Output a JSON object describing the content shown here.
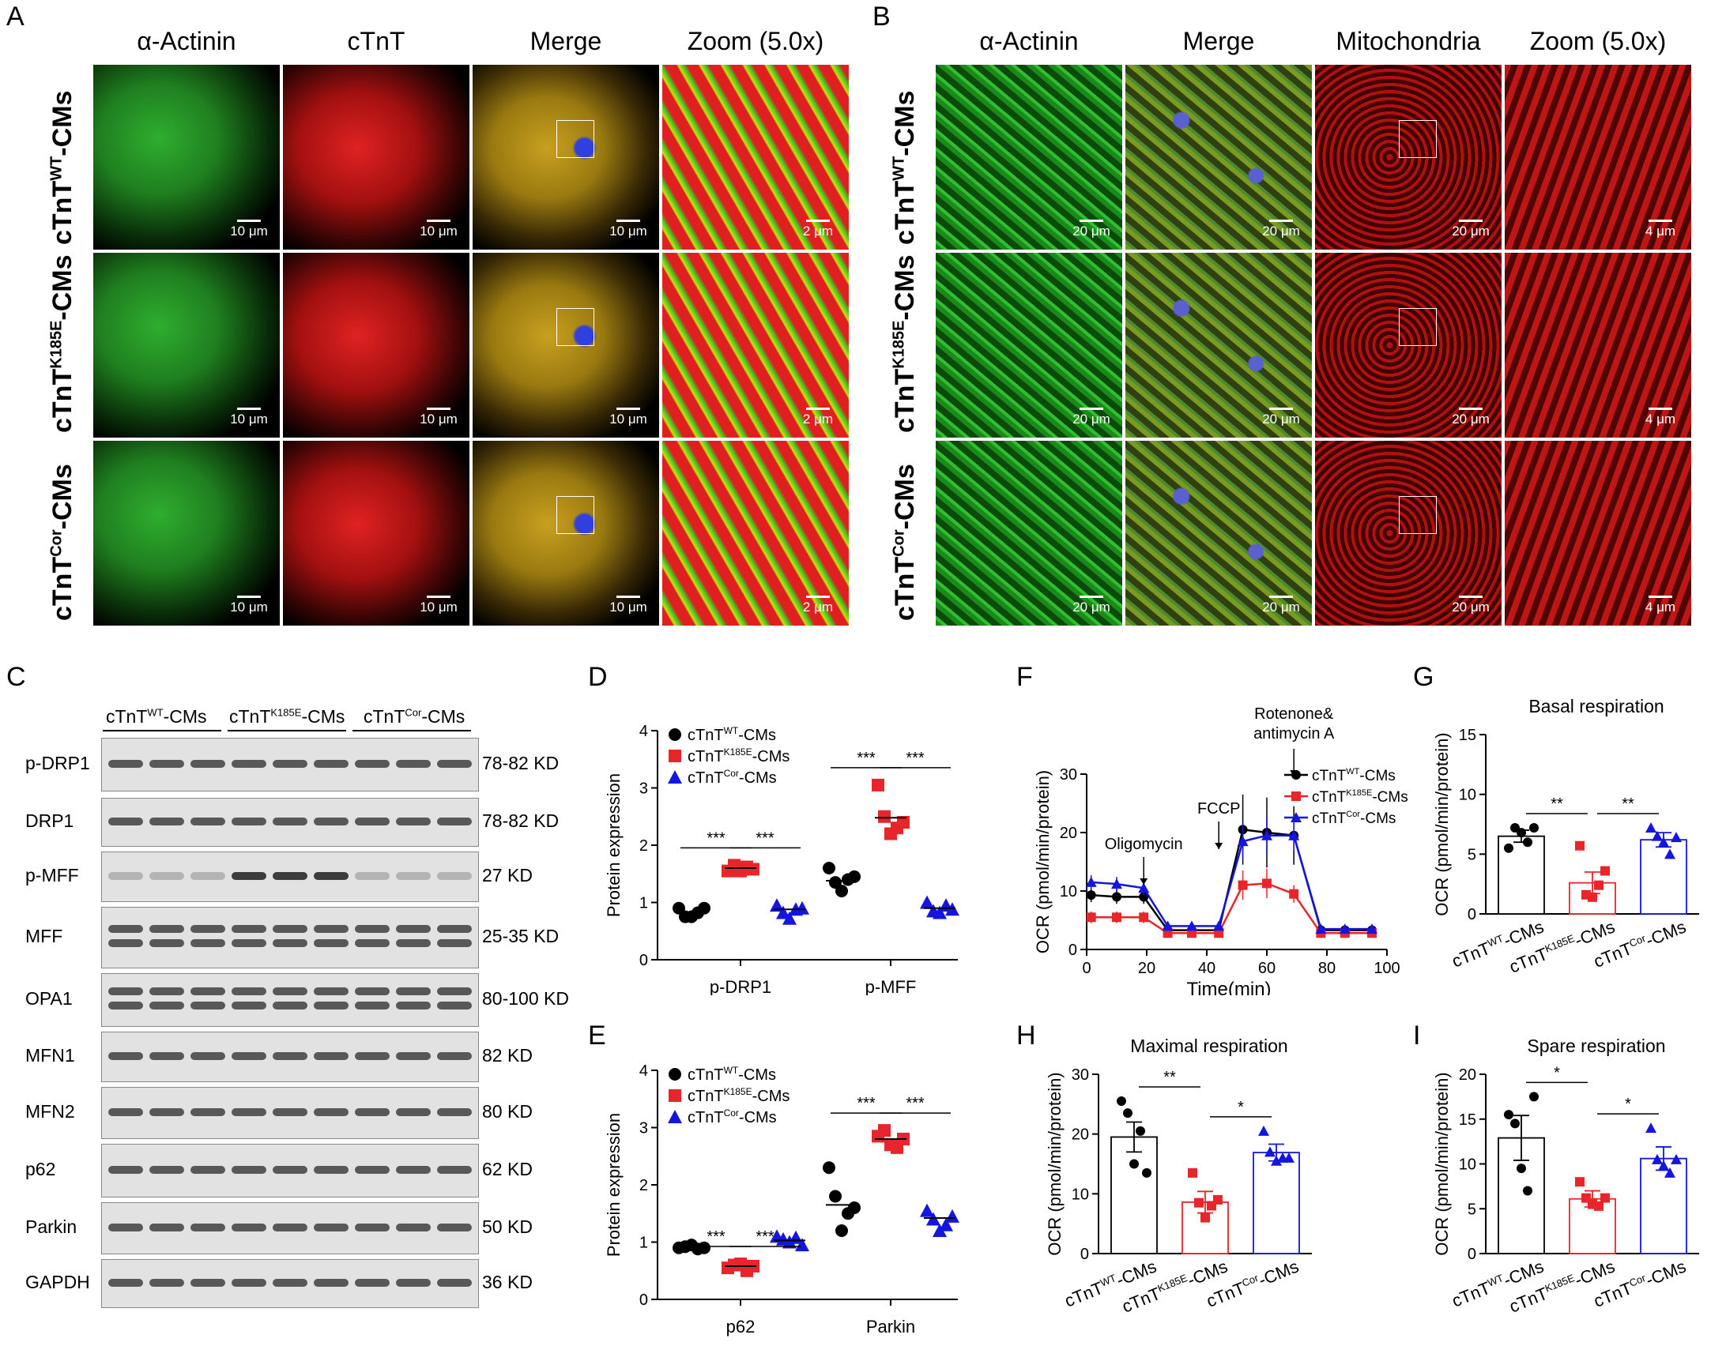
{
  "panel_letters": [
    "A",
    "B",
    "C",
    "D",
    "E",
    "F",
    "G",
    "H",
    "I"
  ],
  "panelA": {
    "columns": [
      "α-Actinin",
      "cTnT",
      "Merge",
      "Zoom (5.0x)"
    ],
    "rows": [
      {
        "base": "cTnT",
        "sup": "WT",
        "suffix": "-CMs"
      },
      {
        "base": "cTnT",
        "sup": "K185E",
        "suffix": "-CMs"
      },
      {
        "base": "cTnT",
        "sup": "Cor",
        "suffix": "-CMs"
      }
    ],
    "scale_main": "10 μm",
    "scale_zoom": "2 μm"
  },
  "panelB": {
    "columns": [
      "α-Actinin",
      "Merge",
      "Mitochondria",
      "Zoom (5.0x)"
    ],
    "rows": [
      {
        "base": "cTnT",
        "sup": "WT",
        "suffix": "-CMs"
      },
      {
        "base": "cTnT",
        "sup": "K185E",
        "suffix": "-CMs"
      },
      {
        "base": "cTnT",
        "sup": "Cor",
        "suffix": "-CMs"
      }
    ],
    "scale_main": "20 μm",
    "scale_zoom": "4 μm"
  },
  "panelC": {
    "groups": [
      {
        "base": "cTnT",
        "sup": "WT",
        "suffix": "-CMs"
      },
      {
        "base": "cTnT",
        "sup": "K185E",
        "suffix": "-CMs"
      },
      {
        "base": "cTnT",
        "sup": "Cor",
        "suffix": "-CMs"
      }
    ],
    "blots": [
      {
        "protein": "p-DRP1",
        "size": "78-82 KD"
      },
      {
        "protein": "DRP1",
        "size": "78-82 KD"
      },
      {
        "protein": "p-MFF",
        "size": "27 KD"
      },
      {
        "protein": "MFF",
        "size": "25-35 KD"
      },
      {
        "protein": "OPA1",
        "size": "80-100 KD"
      },
      {
        "protein": "MFN1",
        "size": "82 KD"
      },
      {
        "protein": "MFN2",
        "size": "80 KD"
      },
      {
        "protein": "p62",
        "size": "62 KD"
      },
      {
        "protein": "Parkin",
        "size": "50 KD"
      },
      {
        "protein": "GAPDH",
        "size": "36 KD"
      }
    ]
  },
  "legend": [
    {
      "base": "cTnT",
      "sup": "WT",
      "suffix": "-CMs",
      "color": "#000000",
      "marker": "circle"
    },
    {
      "base": "cTnT",
      "sup": "K185E",
      "suffix": "-CMs",
      "color": "#e8252a",
      "marker": "square"
    },
    {
      "base": "cTnT",
      "sup": "Cor",
      "suffix": "-CMs",
      "color": "#1515e0",
      "marker": "triangle"
    }
  ],
  "chart_data": [
    {
      "panel": "D",
      "type": "scatter",
      "ylabel": "Protein expression",
      "ylim": [
        0,
        4
      ],
      "yticks": [
        "0",
        "1",
        "2",
        "3",
        "4"
      ],
      "categories": [
        "p-DRP1",
        "p-MFF"
      ],
      "series": [
        {
          "name": "cTnT WT-CMs",
          "values": [
            [
              0.9,
              0.75,
              0.75,
              0.82,
              0.9
            ],
            [
              1.6,
              1.35,
              1.2,
              1.4,
              1.45
            ]
          ],
          "mean": [
            0.82,
            1.38
          ]
        },
        {
          "name": "cTnT K185E-CMs",
          "values": [
            [
              1.55,
              1.65,
              1.55,
              1.62,
              1.58
            ],
            [
              3.05,
              2.5,
              2.2,
              2.3,
              2.4
            ]
          ],
          "mean": [
            1.6,
            2.48
          ]
        },
        {
          "name": "cTnT Cor-CMs",
          "values": [
            [
              0.95,
              0.82,
              0.72,
              0.88,
              0.9
            ],
            [
              1.0,
              0.85,
              0.82,
              0.95,
              0.88
            ]
          ],
          "mean": [
            0.88,
            0.9
          ]
        }
      ],
      "sig": [
        "***",
        "***",
        "***",
        "***"
      ]
    },
    {
      "panel": "E",
      "type": "scatter",
      "ylabel": "Protein expression",
      "ylim": [
        0,
        4
      ],
      "yticks": [
        "0",
        "1",
        "2",
        "3",
        "4"
      ],
      "categories": [
        "p62",
        "Parkin"
      ],
      "series": [
        {
          "name": "cTnT WT-CMs",
          "values": [
            [
              0.9,
              0.92,
              0.95,
              0.88,
              0.9
            ],
            [
              2.3,
              1.8,
              1.2,
              1.5,
              1.6
            ]
          ],
          "mean": [
            0.91,
            1.65
          ]
        },
        {
          "name": "cTnT K185E-CMs",
          "values": [
            [
              0.55,
              0.6,
              0.62,
              0.5,
              0.58
            ],
            [
              2.85,
              2.95,
              2.7,
              2.65,
              2.8
            ]
          ],
          "mean": [
            0.58,
            2.8
          ]
        },
        {
          "name": "cTnT Cor-CMs",
          "values": [
            [
              1.1,
              1.05,
              1.0,
              1.08,
              0.95
            ],
            [
              1.55,
              1.4,
              1.2,
              1.3,
              1.45
            ]
          ],
          "mean": [
            1.03,
            1.42
          ]
        }
      ],
      "sig": [
        "***",
        "***",
        "***",
        "***"
      ]
    },
    {
      "panel": "F",
      "type": "line",
      "xlabel": "Time(min)",
      "ylabel": "OCR (pmol/min/protein)",
      "xlim": [
        0,
        100
      ],
      "ylim": [
        0,
        30
      ],
      "xticks": [
        "0",
        "20",
        "40",
        "60",
        "80",
        "100"
      ],
      "yticks": [
        "0",
        "10",
        "20",
        "30"
      ],
      "x": [
        1.5,
        10,
        19,
        27,
        35,
        44,
        52,
        60,
        69,
        78,
        86,
        95
      ],
      "series": [
        {
          "name": "cTnT WT-CMs",
          "values": [
            9.3,
            9.0,
            9.0,
            3.3,
            3.3,
            3.3,
            20.5,
            20.0,
            19.5,
            3.3,
            3.3,
            3.3
          ],
          "err": [
            1.2,
            1.2,
            1.2,
            0.5,
            0.5,
            0.5,
            6,
            6,
            5,
            0.5,
            0.5,
            0.5
          ]
        },
        {
          "name": "cTnT K185E-CMs",
          "values": [
            5.5,
            5.5,
            5.5,
            2.8,
            2.8,
            2.8,
            11.0,
            11.3,
            9.5,
            2.8,
            2.8,
            2.8
          ],
          "err": [
            1,
            1,
            1,
            0.5,
            0.5,
            0.5,
            2.5,
            2.5,
            1.5,
            0.4,
            0.4,
            0.4
          ]
        },
        {
          "name": "cTnT Cor-CMs",
          "values": [
            11.5,
            11.2,
            10.5,
            4.0,
            4.0,
            4.0,
            18.5,
            19.5,
            19.5,
            3.5,
            3.5,
            3.5
          ],
          "err": [
            1.2,
            1.2,
            1.2,
            0.6,
            0.6,
            0.6,
            3,
            3,
            2.5,
            0.5,
            0.5,
            0.5
          ]
        }
      ],
      "annotations": [
        {
          "label": "Oligomycin",
          "x": 19
        },
        {
          "label": "FCCP",
          "x": 44
        },
        {
          "label": "Rotenone&",
          "label2": "antimycin A",
          "x": 69
        }
      ]
    },
    {
      "panel": "G",
      "type": "bar",
      "title": "Basal respiration",
      "ylabel": "OCR (pmol/min/protein)",
      "ylim": [
        0,
        15
      ],
      "yticks": [
        "0",
        "5",
        "10",
        "15"
      ],
      "categories": [
        "cTnT WT-CMs",
        "cTnT K185E-CMs",
        "cTnT Cor-CMs"
      ],
      "values": [
        6.5,
        2.6,
        6.2
      ],
      "sem": [
        0.5,
        0.9,
        0.6
      ],
      "points": [
        [
          5.5,
          7.2,
          6.8,
          6.0,
          7.2
        ],
        [
          5.7,
          1.6,
          1.4,
          2.4,
          3.6
        ],
        [
          7.2,
          6.5,
          6.0,
          5.0,
          6.4
        ]
      ],
      "sig": [
        "**",
        "**"
      ]
    },
    {
      "panel": "H",
      "type": "bar",
      "title": "Maximal respiration",
      "ylabel": "OCR (pmol/min/protein)",
      "ylim": [
        0,
        30
      ],
      "yticks": [
        "0",
        "10",
        "20",
        "30"
      ],
      "categories": [
        "cTnT WT-CMs",
        "cTnT K185E-CMs",
        "cTnT Cor-CMs"
      ],
      "values": [
        19.5,
        8.6,
        16.9
      ],
      "sem": [
        2.5,
        1.8,
        1.4
      ],
      "points": [
        [
          25.5,
          23.5,
          15.0,
          20.5,
          13.5
        ],
        [
          13.5,
          8.5,
          6.0,
          8.0,
          9.0
        ],
        [
          20.5,
          17.0,
          15.5,
          16.0,
          16.0
        ]
      ],
      "sig": [
        "**",
        "*"
      ]
    },
    {
      "panel": "I",
      "type": "bar",
      "title": "Spare respiration",
      "ylabel": "OCR (pmol/min/protein)",
      "ylim": [
        0,
        20
      ],
      "yticks": [
        "0",
        "5",
        "10",
        "15",
        "20"
      ],
      "categories": [
        "cTnT WT-CMs",
        "cTnT K185E-CMs",
        "cTnT Cor-CMs"
      ],
      "values": [
        12.9,
        6.1,
        10.6
      ],
      "sem": [
        2.5,
        0.9,
        1.3
      ],
      "points": [
        [
          15.5,
          14.5,
          9.5,
          7.0,
          17.5
        ],
        [
          8.0,
          6.2,
          5.5,
          5.3,
          6.2
        ],
        [
          14.0,
          10.5,
          9.8,
          9.0,
          10.5
        ]
      ],
      "sig": [
        "*",
        "*"
      ]
    }
  ]
}
